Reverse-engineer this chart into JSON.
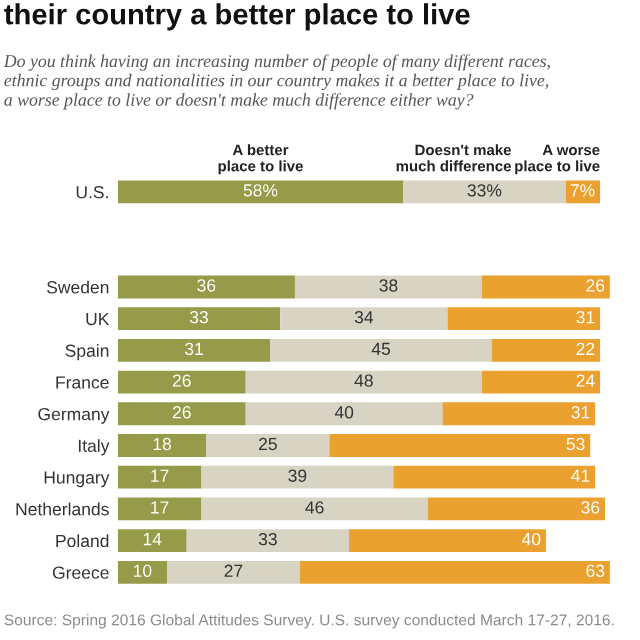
{
  "chart_data": {
    "type": "bar",
    "orientation": "horizontal",
    "stacked": true,
    "title": "their country a better place to live",
    "subtitle": "Do you think having an increasing number of people of many different races,\nethnic groups and nationalities in our country makes it a better place to live,\na worse place to live or doesn't make much difference either way?",
    "categories": [
      "U.S.",
      null,
      null,
      "Sweden",
      "UK",
      "Spain",
      "France",
      "Germany",
      "Italy",
      "Hungary",
      "Netherlands",
      "Poland",
      "Greece"
    ],
    "series": [
      {
        "name": "A better\nplace to live",
        "color": "#959b48",
        "values": [
          58,
          null,
          null,
          36,
          33,
          31,
          26,
          26,
          18,
          17,
          17,
          14,
          10
        ],
        "value_labels": [
          "58%",
          null,
          null,
          "36",
          "33",
          "31",
          "26",
          "26",
          "18",
          "17",
          "17",
          "14",
          "10"
        ]
      },
      {
        "name": "Doesn't make\nmuch difference",
        "color": "#d7d4c4",
        "values": [
          33,
          null,
          null,
          38,
          34,
          45,
          48,
          40,
          25,
          39,
          46,
          33,
          27
        ],
        "value_labels": [
          "33%",
          null,
          null,
          "38",
          "34",
          "45",
          "48",
          "40",
          "25",
          "39",
          "46",
          "33",
          "27"
        ]
      },
      {
        "name": "A worse\nplace to live",
        "color": "#eaa12f",
        "values": [
          7,
          null,
          null,
          26,
          31,
          22,
          24,
          31,
          53,
          41,
          36,
          40,
          63
        ],
        "value_labels": [
          "7%",
          null,
          null,
          "26",
          "31",
          "22",
          "24",
          "31",
          "53",
          "41",
          "36",
          "40",
          "63"
        ]
      }
    ],
    "xlim": [
      0,
      100
    ],
    "tick_labels": "y",
    "grid": false,
    "legend": "top",
    "annotations": [
      "Source: Spring 2016 Global Attitudes Survey. U.S. survey conducted March 17-27, 2016."
    ]
  }
}
